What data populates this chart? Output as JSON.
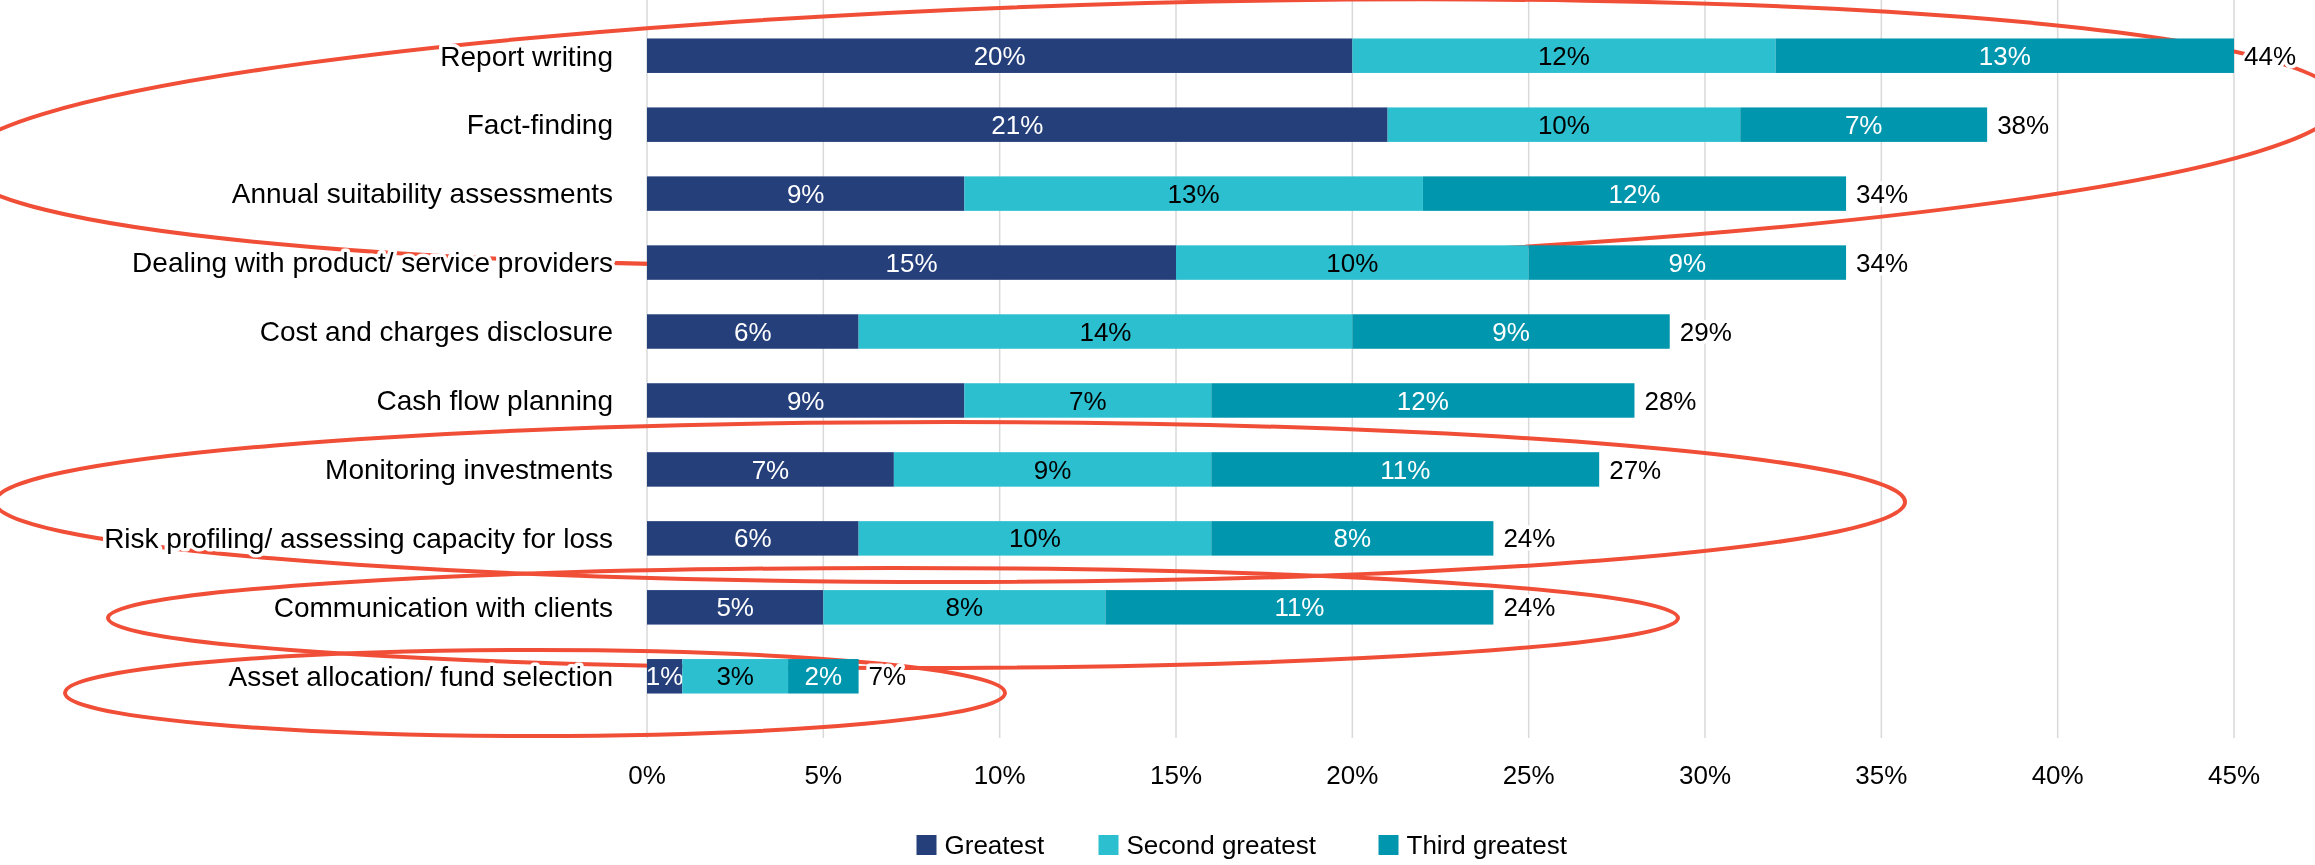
{
  "chart_data": {
    "type": "bar",
    "orientation": "horizontal",
    "stacked": true,
    "categories": [
      "Report writing",
      "Fact-finding",
      "Annual suitability assessments",
      "Dealing with product/ service providers",
      "Cost and charges disclosure",
      "Cash flow planning",
      "Monitoring investments",
      "Risk profiling/ assessing capacity for loss",
      "Communication with clients",
      "Asset allocation/ fund selection"
    ],
    "series": [
      {
        "name": "Greatest",
        "color": "#253f7b",
        "values": [
          20,
          21,
          9,
          15,
          6,
          9,
          7,
          6,
          5,
          1
        ],
        "value_labels": [
          "20%",
          "21%",
          "9%",
          "15%",
          "6%",
          "9%",
          "7%",
          "6%",
          "5%",
          "1%"
        ]
      },
      {
        "name": "Second greatest",
        "color": "#2cbfcf",
        "values": [
          12,
          10,
          13,
          10,
          14,
          7,
          9,
          10,
          8,
          3
        ],
        "value_labels": [
          "12%",
          "10%",
          "13%",
          "10%",
          "14%",
          "7%",
          "9%",
          "10%",
          "8%",
          "3%"
        ]
      },
      {
        "name": "Third greatest",
        "color": "#0096ad",
        "values": [
          13,
          7,
          12,
          9,
          9,
          12,
          11,
          8,
          11,
          2
        ],
        "value_labels": [
          "13%",
          "7%",
          "12%",
          "9%",
          "9%",
          "12%",
          "11%",
          "8%",
          "11%",
          "2%"
        ]
      }
    ],
    "totals": [
      "44%",
      "38%",
      "34%",
      "34%",
      "29%",
      "28%",
      "27%",
      "24%",
      "24%",
      "7%"
    ],
    "xlim": [
      0,
      45
    ],
    "xticks": [
      {
        "value": 0,
        "label": "0%"
      },
      {
        "value": 5,
        "label": "5%"
      },
      {
        "value": 10,
        "label": "10%"
      },
      {
        "value": 15,
        "label": "15%"
      },
      {
        "value": 20,
        "label": "20%"
      },
      {
        "value": 25,
        "label": "25%"
      },
      {
        "value": 30,
        "label": "30%"
      },
      {
        "value": 35,
        "label": "35%"
      },
      {
        "value": 40,
        "label": "40%"
      },
      {
        "value": 45,
        "label": "45%"
      }
    ],
    "grid": "x",
    "legend": "bottom"
  }
}
